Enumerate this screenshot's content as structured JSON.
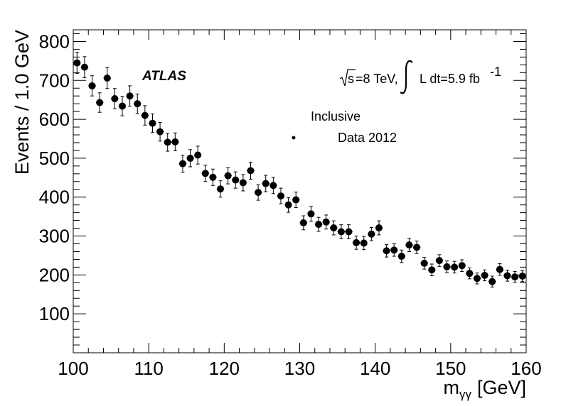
{
  "chart_data": {
    "type": "scatter",
    "xlabel": "m",
    "xlabel_sub": "γγ",
    "xlabel_unit": "[GeV]",
    "ylabel": "Events /  1.0 GeV",
    "xlim": [
      100,
      160
    ],
    "ylim": [
      0,
      830
    ],
    "x_ticks": [
      "100",
      "110",
      "120",
      "130",
      "140",
      "150",
      "160"
    ],
    "y_ticks": [
      "100",
      "200",
      "300",
      "400",
      "500",
      "600",
      "700",
      "800"
    ],
    "experiment": "ATLAS",
    "energy_sqrt": "s",
    "energy_text": "=8 TeV,",
    "lumi_text": "L dt=5.9 fb",
    "lumi_exp": "-1",
    "legend_header": "Inclusive",
    "legend_placement": "top-center",
    "grid": false,
    "series": [
      {
        "name": "Data 2012",
        "x": [
          100.5,
          101.5,
          102.5,
          103.5,
          104.5,
          105.5,
          106.5,
          107.5,
          108.5,
          109.5,
          110.5,
          111.5,
          112.5,
          113.5,
          114.5,
          115.5,
          116.5,
          117.5,
          118.5,
          119.5,
          120.5,
          121.5,
          122.5,
          123.5,
          124.5,
          125.5,
          126.5,
          127.5,
          128.5,
          129.5,
          130.5,
          131.5,
          132.5,
          133.5,
          134.5,
          135.5,
          136.5,
          137.5,
          138.5,
          139.5,
          140.5,
          141.5,
          142.5,
          143.5,
          144.5,
          145.5,
          146.5,
          147.5,
          148.5,
          149.5,
          150.5,
          151.5,
          152.5,
          153.5,
          154.5,
          155.5,
          156.5,
          157.5,
          158.5,
          159.5
        ],
        "y": [
          745,
          734,
          686,
          643,
          706,
          653,
          634,
          660,
          640,
          610,
          590,
          568,
          541,
          542,
          486,
          500,
          508,
          461,
          451,
          421,
          455,
          444,
          437,
          468,
          412,
          435,
          430,
          403,
          380,
          393,
          334,
          357,
          330,
          336,
          321,
          311,
          311,
          283,
          282,
          305,
          321,
          262,
          264,
          248,
          277,
          271,
          230,
          213,
          237,
          221,
          220,
          224,
          204,
          191,
          199,
          183,
          214,
          198,
          195,
          197
        ],
        "yerr": [
          27,
          27,
          26,
          25,
          27,
          26,
          25,
          26,
          25,
          25,
          24,
          24,
          23,
          23,
          22,
          22,
          23,
          21,
          21,
          21,
          21,
          21,
          21,
          22,
          20,
          21,
          21,
          20,
          19,
          20,
          18,
          19,
          18,
          18,
          18,
          18,
          18,
          17,
          17,
          17,
          18,
          16,
          16,
          16,
          17,
          16,
          15,
          15,
          15,
          15,
          15,
          15,
          14,
          14,
          14,
          14,
          15,
          14,
          14,
          14
        ]
      }
    ]
  }
}
